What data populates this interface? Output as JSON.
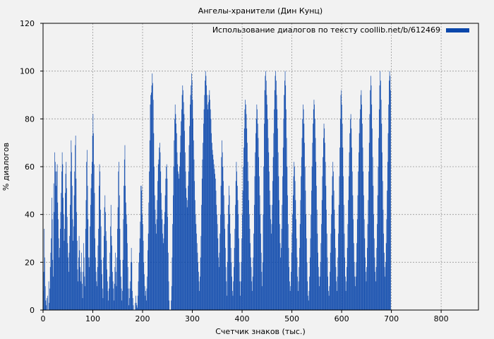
{
  "chart_data": {
    "type": "bar",
    "title": "Ангелы-хранители (Дин Кунц)",
    "xlabel": "Счетчик знаков (тыс.)",
    "ylabel": "% диалогов",
    "xlim": [
      0,
      875
    ],
    "ylim": [
      0,
      120
    ],
    "xticks": [
      0,
      100,
      200,
      300,
      400,
      500,
      600,
      700,
      800
    ],
    "yticks": [
      0,
      20,
      40,
      60,
      80,
      100,
      120
    ],
    "grid": true,
    "legend_position": "top-right",
    "bar_color": "#0b47ab",
    "series": [
      {
        "name": "Использование диалогов по тексту coollib.net/b/612469",
        "x_step": 1,
        "values": [
          8,
          16,
          34,
          22,
          10,
          4,
          2,
          5,
          0,
          6,
          0,
          12,
          3,
          9,
          18,
          24,
          30,
          47,
          38,
          21,
          14,
          53,
          41,
          66,
          62,
          58,
          52,
          58,
          61,
          45,
          38,
          30,
          22,
          26,
          34,
          41,
          49,
          58,
          66,
          61,
          47,
          40,
          29,
          34,
          49,
          57,
          62,
          51,
          39,
          28,
          22,
          16,
          24,
          31,
          44,
          58,
          71,
          66,
          52,
          38,
          29,
          35,
          48,
          58,
          69,
          73,
          55,
          41,
          29,
          17,
          12,
          22,
          31,
          25,
          18,
          12,
          16,
          24,
          11,
          5,
          16,
          28,
          22,
          14,
          10,
          34,
          46,
          62,
          67,
          52,
          38,
          22,
          18,
          22,
          35,
          44,
          51,
          57,
          62,
          73,
          82,
          74,
          61,
          49,
          30,
          22,
          16,
          12,
          10,
          18,
          27,
          34,
          52,
          61,
          58,
          42,
          35,
          21,
          15,
          9,
          5,
          22,
          31,
          43,
          48,
          41,
          33,
          29,
          17,
          12,
          8,
          4,
          9,
          14,
          24,
          35,
          44,
          31,
          27,
          16,
          12,
          9,
          4,
          11,
          18,
          24,
          16,
          10,
          22,
          34,
          43,
          58,
          62,
          48,
          34,
          21,
          14,
          9,
          4,
          8,
          21,
          38,
          52,
          63,
          69,
          52,
          45,
          40,
          36,
          28,
          18,
          9,
          2,
          5,
          9,
          12,
          20,
          26,
          20,
          8,
          5,
          2,
          0,
          0,
          0,
          3,
          6,
          3,
          2,
          1,
          6,
          12,
          20,
          24,
          30,
          37,
          52,
          50,
          52,
          40,
          36,
          29,
          20,
          15,
          10,
          6,
          8,
          4,
          9,
          14,
          25,
          32,
          45,
          58,
          71,
          86,
          90,
          91,
          94,
          99,
          95,
          88,
          74,
          60,
          48,
          42,
          36,
          32,
          38,
          46,
          54,
          61,
          63,
          68,
          70,
          66,
          58,
          49,
          42,
          38,
          32,
          28,
          30,
          36,
          41,
          48,
          55,
          60,
          61,
          55,
          39,
          24,
          12,
          4,
          0,
          0,
          0,
          4,
          10,
          22,
          36,
          48,
          60,
          71,
          80,
          86,
          82,
          78,
          74,
          66,
          61,
          58,
          57,
          55,
          60,
          66,
          73,
          79,
          84,
          90,
          94,
          92,
          87,
          82,
          75,
          66,
          58,
          51,
          47,
          43,
          46,
          52,
          58,
          69,
          77,
          86,
          90,
          94,
          99,
          96,
          88,
          80,
          71,
          63,
          54,
          46,
          40,
          36,
          32,
          28,
          24,
          20,
          16,
          12,
          8,
          14,
          22,
          31,
          44,
          55,
          63,
          70,
          78,
          84,
          90,
          96,
          100,
          98,
          94,
          90,
          86,
          84,
          87,
          90,
          92,
          88,
          84,
          80,
          74,
          70,
          67,
          65,
          63,
          61,
          59,
          57,
          55,
          50,
          44,
          40,
          36,
          30,
          22,
          18,
          24,
          32,
          40,
          52,
          64,
          71,
          66,
          60,
          54,
          48,
          40,
          34,
          26,
          18,
          12,
          6,
          20,
          36,
          44,
          52,
          48,
          40,
          32,
          26,
          20,
          14,
          8,
          6,
          12,
          18,
          26,
          34,
          44,
          54,
          62,
          58,
          52,
          46,
          40,
          30,
          20,
          12,
          6,
          12,
          20,
          30,
          40,
          50,
          60,
          68,
          76,
          84,
          88,
          86,
          82,
          76,
          70,
          62,
          54,
          46,
          40,
          34,
          28,
          22,
          18,
          12,
          8,
          14,
          22,
          32,
          44,
          56,
          66,
          74,
          80,
          86,
          84,
          78,
          72,
          64,
          56,
          48,
          40,
          32,
          24,
          16,
          10,
          20,
          40,
          60,
          78,
          92,
          98,
          100,
          96,
          90,
          86,
          80,
          72,
          66,
          58,
          50,
          44,
          38,
          32,
          36,
          44,
          54,
          64,
          74,
          84,
          92,
          98,
          100,
          96,
          90,
          84,
          76,
          66,
          56,
          46,
          36,
          28,
          22,
          26,
          34,
          44,
          56,
          68,
          80,
          90,
          96,
          100,
          94,
          84,
          72,
          60,
          48,
          36,
          26,
          18,
          12,
          8,
          10,
          16,
          24,
          32,
          40,
          48,
          56,
          62,
          60,
          54,
          46,
          38,
          30,
          22,
          14,
          8,
          12,
          18,
          26,
          36,
          46,
          56,
          64,
          72,
          80,
          86,
          84,
          78,
          70,
          60,
          50,
          40,
          30,
          20,
          12,
          6,
          4,
          8,
          14,
          22,
          30,
          40,
          50,
          60,
          70,
          78,
          84,
          88,
          86,
          80,
          72,
          62,
          52,
          42,
          32,
          24,
          18,
          14,
          10,
          14,
          20,
          28,
          36,
          46,
          56,
          64,
          72,
          78,
          76,
          70,
          62,
          52,
          42,
          32,
          22,
          14,
          8,
          6,
          10,
          16,
          24,
          32,
          40,
          48,
          56,
          62,
          58,
          50,
          42,
          34,
          26,
          18,
          12,
          8,
          14,
          22,
          32,
          44,
          56,
          68,
          80,
          90,
          92,
          86,
          78,
          68,
          56,
          44,
          32,
          22,
          14,
          8,
          12,
          18,
          26,
          36,
          46,
          56,
          66,
          74,
          80,
          82,
          76,
          68,
          58,
          48,
          38,
          28,
          20,
          14,
          10,
          14,
          20,
          28,
          38,
          48,
          58,
          66,
          74,
          80,
          84,
          90,
          92,
          86,
          78,
          68,
          58,
          48,
          38,
          30,
          22,
          16,
          12,
          18,
          26,
          36,
          46,
          58,
          70,
          82,
          92,
          98,
          94,
          86,
          76,
          64,
          52,
          40,
          30,
          22,
          16,
          12,
          18,
          26,
          36,
          48,
          60,
          72,
          84,
          94,
          100,
          96,
          88,
          78,
          66,
          54,
          42,
          32,
          24,
          18,
          14,
          20,
          28,
          38,
          50,
          62,
          74,
          86,
          96,
          100,
          98,
          92
        ]
      }
    ]
  }
}
